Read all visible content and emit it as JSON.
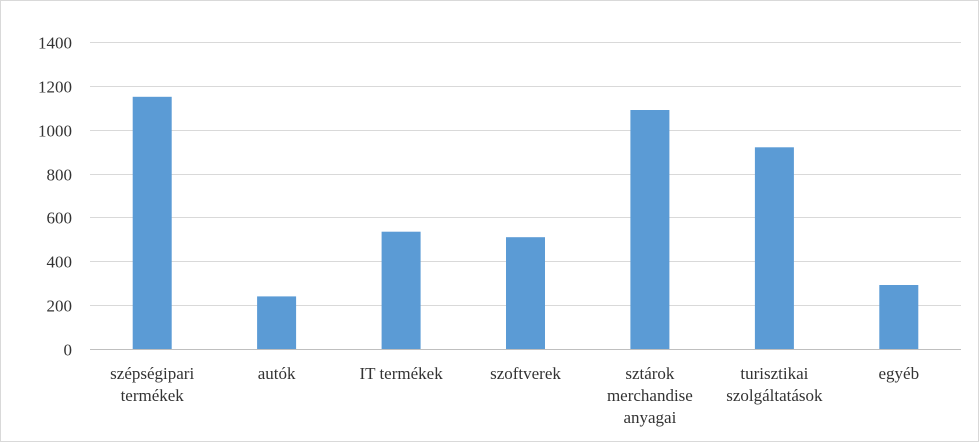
{
  "chart_data": {
    "type": "bar",
    "categories": [
      [
        "szépségipari",
        "termékek"
      ],
      [
        "autók"
      ],
      [
        "IT termékek"
      ],
      [
        "szoftverek"
      ],
      [
        "sztárok",
        "merchandise",
        "anyagai"
      ],
      [
        "turisztikai",
        "szolgáltatások"
      ],
      [
        "egyéb"
      ]
    ],
    "values": [
      1150,
      240,
      535,
      510,
      1090,
      920,
      292
    ],
    "ylim": [
      0,
      1400
    ],
    "yticks": [
      0,
      200,
      400,
      600,
      800,
      1000,
      1200,
      1400
    ],
    "grid": true,
    "legend": "none",
    "bar_color": "#5b9bd5",
    "grid_color": "#d9d9d9",
    "axis_color": "#bfbfbf"
  }
}
